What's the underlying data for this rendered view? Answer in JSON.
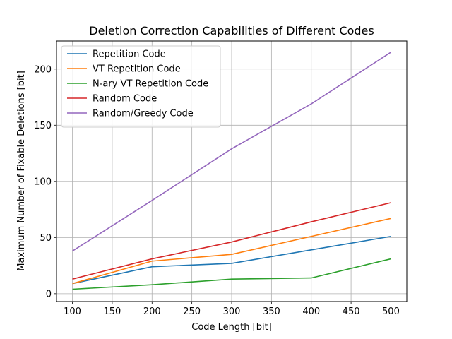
{
  "chart_data": {
    "type": "line",
    "title": "Deletion Correction Capabilities of Different Codes",
    "xlabel": "Code Length [bit]",
    "ylabel": "Maximum Number of Fixable Deletions [bit]",
    "x": [
      100,
      200,
      300,
      400,
      500
    ],
    "xlim": [
      80,
      520
    ],
    "ylim": [
      -7,
      225
    ],
    "xticks": [
      100,
      150,
      200,
      250,
      300,
      350,
      400,
      450,
      500
    ],
    "yticks": [
      0,
      50,
      100,
      150,
      200
    ],
    "grid": true,
    "legend_position": "upper-left",
    "series": [
      {
        "name": "Repetition Code",
        "color": "#1f77b4",
        "values": [
          9,
          24,
          27,
          39,
          51
        ]
      },
      {
        "name": "VT Repetition Code",
        "color": "#ff7f0e",
        "values": [
          9,
          29,
          35,
          51,
          67
        ]
      },
      {
        "name": "N-ary VT Repetition Code",
        "color": "#2ca02c",
        "values": [
          4,
          8,
          13,
          14,
          31
        ]
      },
      {
        "name": "Random Code",
        "color": "#d62728",
        "values": [
          13,
          31,
          46,
          64,
          81
        ]
      },
      {
        "name": "Random/Greedy Code",
        "color": "#9467bd",
        "values": [
          38,
          83,
          129,
          169,
          215
        ]
      }
    ]
  }
}
